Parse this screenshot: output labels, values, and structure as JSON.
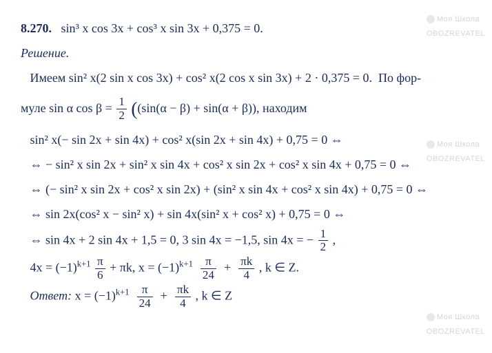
{
  "problem": {
    "number": "8.270.",
    "equation": "sin³ x cos 3x + cos³ x sin 3x + 0,375 = 0."
  },
  "solution_label": "Решение.",
  "lines": {
    "l1a": "Имеем sin² x(2 sin x cos 3x) + cos² x(2 cos x sin 3x) + 2 · 0,375 = 0.",
    "l1b": "По фор-",
    "l2a": "муле sin α cos β = ",
    "l2b": "(sin(α − β) + sin(α + β)),  находим",
    "l3": "sin² x(− sin 2x + sin 4x) + cos² x(sin 2x + sin 4x) + 0,75 = 0 ⇔",
    "l4": "⇔ − sin² x sin 2x + sin² x sin 4x + cos² x sin 2x + cos² x sin 4x + 0,75 = 0 ⇔",
    "l5": "⇔ (− sin² x sin 2x + cos² x sin 2x) + (sin² x sin 4x + cos² x sin 4x) + 0,75 = 0 ⇔",
    "l6": "⇔ sin 2x(cos² x − sin² x) + sin 4x(sin² x + cos² x) + 0,75 = 0 ⇔",
    "l7a": "⇔ sin 4x + 2 sin 4x + 1,5 = 0,  3 sin 4x = −1,5,   sin 4x = −",
    "l7b": " ,",
    "l8a": "4x = (−1)",
    "l8exp1": "k+1",
    "l8b": " + πk,  x = (−1)",
    "l8exp2": "k+1",
    "l8c": " ,   k ∈ Z.",
    "ans_label": "Ответ:",
    "ans_a": "  x = (−1)",
    "ans_exp": "k+1",
    "ans_b": " ,  k ∈ Z"
  },
  "fracs": {
    "half_num": "1",
    "half_den": "2",
    "pi6_num": "π",
    "pi6_den": "6",
    "pi24_num": "π",
    "pi24_den": "24",
    "pik4_num": "πk",
    "pik4_den": "4"
  },
  "watermark": {
    "text1": "Моя Школа",
    "text2": "OBOZREVATEL"
  }
}
